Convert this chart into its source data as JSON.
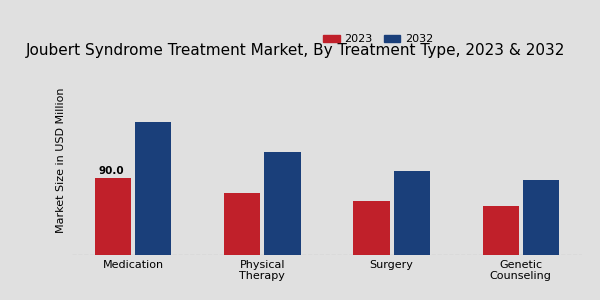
{
  "title": "Joubert Syndrome Treatment Market, By Treatment Type, 2023 & 2032",
  "ylabel": "Market Size in USD Million",
  "categories": [
    "Medication",
    "Physical\nTherapy",
    "Surgery",
    "Genetic\nCounseling"
  ],
  "values_2023": [
    90.0,
    72.0,
    63.0,
    57.0
  ],
  "values_2032": [
    155.0,
    120.0,
    98.0,
    87.0
  ],
  "color_2023": "#c0202a",
  "color_2032": "#1a3f7a",
  "bar_annotation": "90.0",
  "bar_annotation_index": 0,
  "background_color": "#e0e0e0",
  "title_fontsize": 11,
  "legend_labels": [
    "2023",
    "2032"
  ],
  "ylim": [
    0,
    220
  ]
}
